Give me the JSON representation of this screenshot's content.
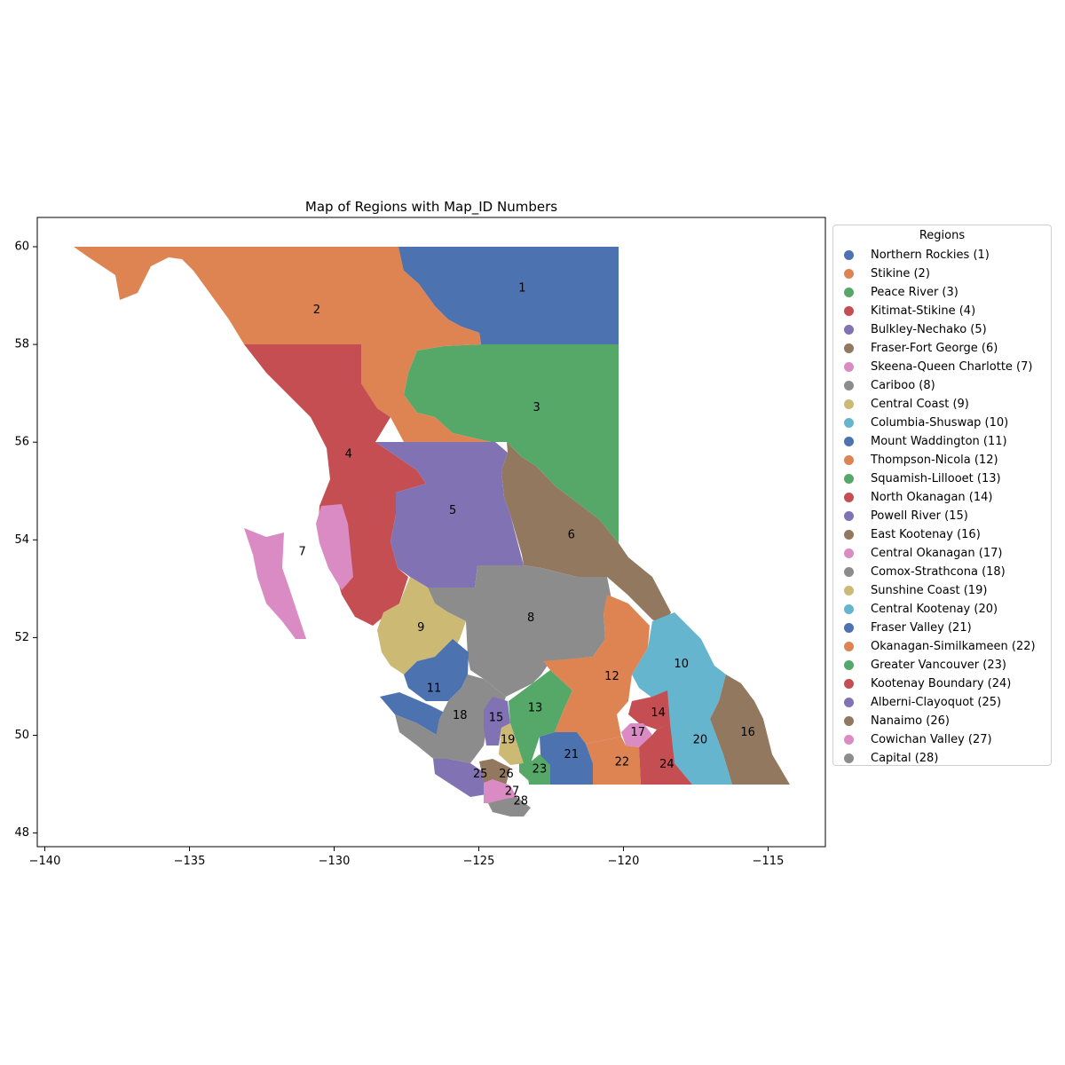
{
  "chart_data": {
    "type": "map",
    "title": "Map of Regions with Map_ID Numbers",
    "xlim": [
      -140,
      -113
    ],
    "ylim": [
      48,
      60
    ],
    "x_ticks": [
      -140,
      -135,
      -130,
      -125,
      -120,
      -115
    ],
    "y_ticks": [
      48,
      50,
      52,
      54,
      56,
      58,
      60
    ],
    "x_tick_labels": [
      "−140",
      "−135",
      "−130",
      "−125",
      "−120",
      "−115"
    ],
    "y_tick_labels": [
      "48",
      "50",
      "52",
      "54",
      "56",
      "58",
      "60"
    ],
    "grid": false,
    "legend": {
      "title": "Regions",
      "placement": "outside-right"
    },
    "regions": [
      {
        "id": "1",
        "name": "Northern Rockies",
        "color": "#4c72b0",
        "label_lon": -123.5,
        "label_lat": 59.15
      },
      {
        "id": "2",
        "name": "Stikine",
        "color": "#dd8452",
        "label_lon": -130.6,
        "label_lat": 58.7
      },
      {
        "id": "3",
        "name": "Peace River",
        "color": "#55a868",
        "label_lon": -123.0,
        "label_lat": 56.7
      },
      {
        "id": "4",
        "name": "Kitimat-Stikine",
        "color": "#c44e52",
        "label_lon": -129.5,
        "label_lat": 55.75
      },
      {
        "id": "5",
        "name": "Bulkley-Nechako",
        "color": "#8172b3",
        "label_lon": -125.9,
        "label_lat": 54.6
      },
      {
        "id": "6",
        "name": "Fraser-Fort George",
        "color": "#937860",
        "label_lon": -121.8,
        "label_lat": 54.1
      },
      {
        "id": "7",
        "name": "Skeena-Queen Charlotte",
        "color": "#da8bc3",
        "label_lon": -131.1,
        "label_lat": 53.75
      },
      {
        "id": "8",
        "name": "Cariboo",
        "color": "#8c8c8c",
        "label_lon": -123.2,
        "label_lat": 52.4
      },
      {
        "id": "9",
        "name": "Central Coast",
        "color": "#ccb974",
        "label_lon": -127.0,
        "label_lat": 52.2
      },
      {
        "id": "10",
        "name": "Columbia-Shuswap",
        "color": "#64b5cd",
        "label_lon": -118.0,
        "label_lat": 51.45
      },
      {
        "id": "11",
        "name": "Mount Waddington",
        "color": "#4c72b0",
        "label_lon": -126.55,
        "label_lat": 50.95
      },
      {
        "id": "12",
        "name": "Thompson-Nicola",
        "color": "#dd8452",
        "label_lon": -120.4,
        "label_lat": 51.2
      },
      {
        "id": "13",
        "name": "Squamish-Lillooet",
        "color": "#55a868",
        "label_lon": -123.05,
        "label_lat": 50.55
      },
      {
        "id": "14",
        "name": "North Okanagan",
        "color": "#c44e52",
        "label_lon": -118.8,
        "label_lat": 50.45
      },
      {
        "id": "15",
        "name": "Powell River",
        "color": "#8172b3",
        "label_lon": -124.4,
        "label_lat": 50.35
      },
      {
        "id": "16",
        "name": "East Kootenay",
        "color": "#937860",
        "label_lon": -115.7,
        "label_lat": 50.05
      },
      {
        "id": "17",
        "name": "Central Okanagan",
        "color": "#da8bc3",
        "label_lon": -119.5,
        "label_lat": 50.05
      },
      {
        "id": "18",
        "name": "Comox-Strathcona",
        "color": "#8c8c8c",
        "label_lon": -125.65,
        "label_lat": 50.4
      },
      {
        "id": "19",
        "name": "Sunshine Coast",
        "color": "#ccb974",
        "label_lon": -124.0,
        "label_lat": 49.9
      },
      {
        "id": "20",
        "name": "Central Kootenay",
        "color": "#64b5cd",
        "label_lon": -117.35,
        "label_lat": 49.9
      },
      {
        "id": "21",
        "name": "Fraser Valley",
        "color": "#4c72b0",
        "label_lon": -121.8,
        "label_lat": 49.6
      },
      {
        "id": "22",
        "name": "Okanagan-Similkameen",
        "color": "#dd8452",
        "label_lon": -120.05,
        "label_lat": 49.45
      },
      {
        "id": "23",
        "name": "Greater Vancouver",
        "color": "#55a868",
        "label_lon": -122.9,
        "label_lat": 49.3
      },
      {
        "id": "24",
        "name": "Kootenay Boundary",
        "color": "#c44e52",
        "label_lon": -118.5,
        "label_lat": 49.4
      },
      {
        "id": "25",
        "name": "Alberni-Clayoquot",
        "color": "#8172b3",
        "label_lon": -124.95,
        "label_lat": 49.2
      },
      {
        "id": "26",
        "name": "Nanaimo",
        "color": "#937860",
        "label_lon": -124.05,
        "label_lat": 49.2
      },
      {
        "id": "27",
        "name": "Cowichan Valley",
        "color": "#da8bc3",
        "label_lon": -123.85,
        "label_lat": 48.85
      },
      {
        "id": "28",
        "name": "Capital",
        "color": "#8c8c8c",
        "label_lon": -123.55,
        "label_lat": 48.65
      }
    ]
  }
}
